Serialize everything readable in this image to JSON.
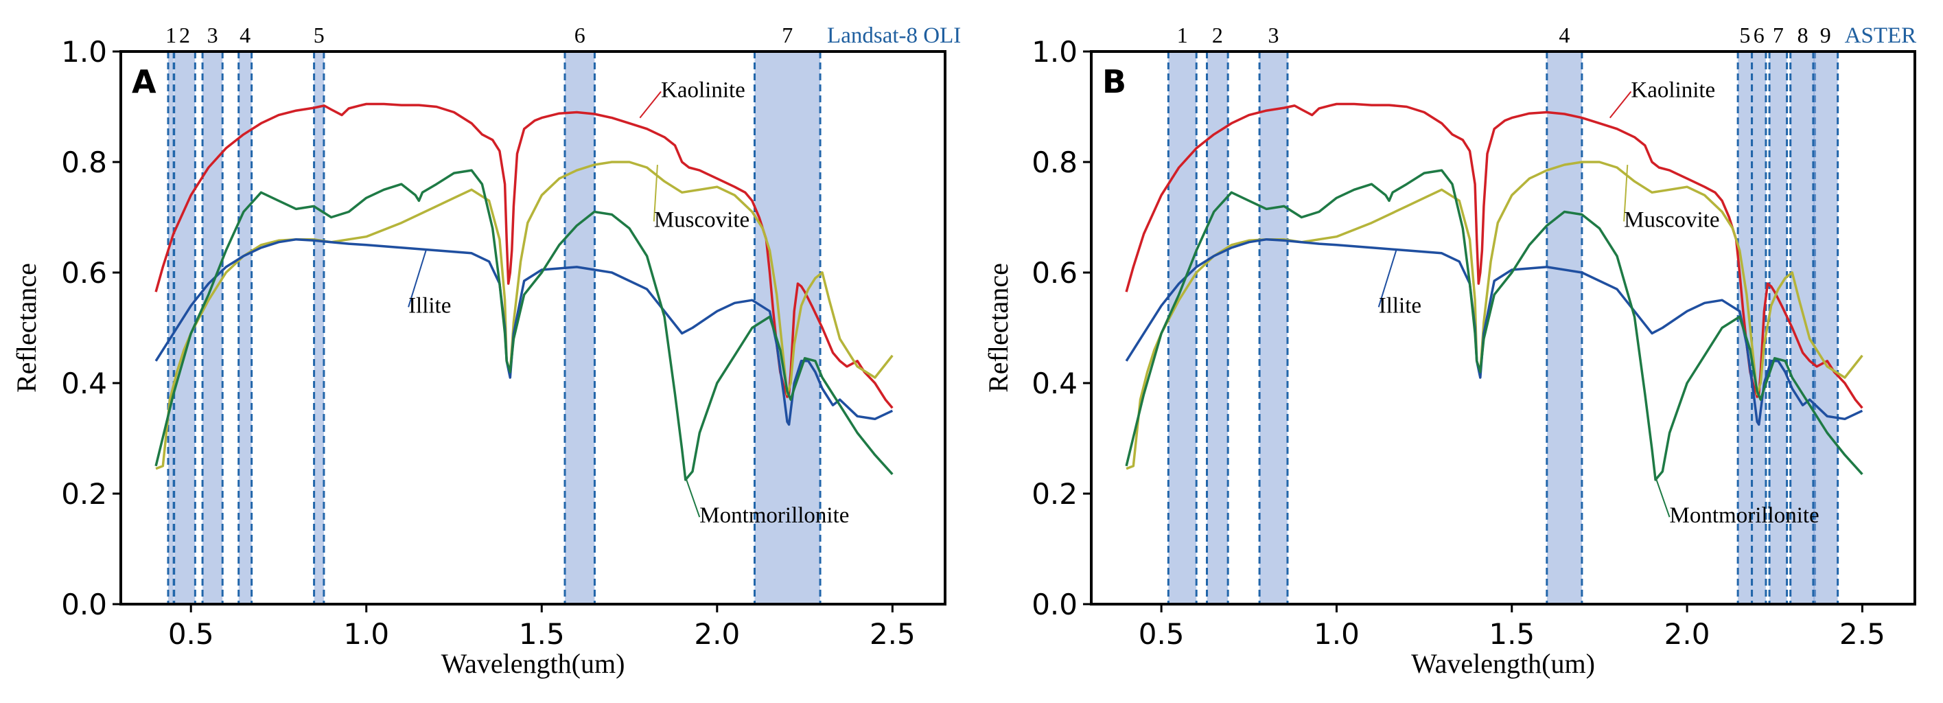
{
  "colors": {
    "kaolinite": "#d21f26",
    "muscovite": "#b5b43a",
    "illite": "#1f4fa0",
    "montmorillonite": "#1e7a45",
    "band_fill": "#8aa6d9",
    "band_edge": "#2266aa",
    "sensor_text": "#1f5f9f"
  },
  "chart_data": [
    {
      "type": "line",
      "panel_label": "A",
      "sensor": "Landsat-8 OLI",
      "xlabel": "Wavelength(um)",
      "ylabel": "Reflectance",
      "xlim": [
        0.3,
        2.65
      ],
      "ylim": [
        0.0,
        1.0
      ],
      "x_ticks": [
        {
          "value": 0.5,
          "label": "0.5"
        },
        {
          "value": 1.0,
          "label": "1.0"
        },
        {
          "value": 1.5,
          "label": "1.5"
        },
        {
          "value": 2.0,
          "label": "2.0"
        },
        {
          "value": 2.5,
          "label": "2.5"
        }
      ],
      "y_ticks": [
        {
          "value": 0.0,
          "label": "0.0"
        },
        {
          "value": 0.2,
          "label": "0.2"
        },
        {
          "value": 0.4,
          "label": "0.4"
        },
        {
          "value": 0.6,
          "label": "0.6"
        },
        {
          "value": 0.8,
          "label": "0.8"
        },
        {
          "value": 1.0,
          "label": "1.0"
        }
      ],
      "bands": [
        {
          "label": "1",
          "range": [
            0.435,
            0.451
          ]
        },
        {
          "label": "2",
          "range": [
            0.452,
            0.512
          ]
        },
        {
          "label": "3",
          "range": [
            0.533,
            0.59
          ]
        },
        {
          "label": "4",
          "range": [
            0.636,
            0.673
          ]
        },
        {
          "label": "5",
          "range": [
            0.851,
            0.879
          ]
        },
        {
          "label": "6",
          "range": [
            1.566,
            1.651
          ]
        },
        {
          "label": "7",
          "range": [
            2.107,
            2.294
          ]
        }
      ],
      "annotations": [
        {
          "series": "Kaolinite",
          "text": "Kaolinite",
          "point": [
            1.78,
            0.88
          ],
          "text_at": [
            1.84,
            0.935
          ]
        },
        {
          "series": "Muscovite",
          "text": "Muscovite",
          "point": [
            1.83,
            0.795
          ],
          "text_at": [
            1.82,
            0.7
          ]
        },
        {
          "series": "Illite",
          "text": "Illite",
          "point": [
            1.17,
            0.64
          ],
          "text_at": [
            1.12,
            0.545
          ]
        },
        {
          "series": "Montmorillonite",
          "text": "Montmorillonite",
          "point": [
            1.91,
            0.23
          ],
          "text_at": [
            1.95,
            0.165
          ]
        }
      ]
    },
    {
      "type": "line",
      "panel_label": "B",
      "sensor": "ASTER",
      "xlabel": "Wavelength(um)",
      "ylabel": "Reflectance",
      "xlim": [
        0.3,
        2.65
      ],
      "ylim": [
        0.0,
        1.0
      ],
      "x_ticks": [
        {
          "value": 0.5,
          "label": "0.5"
        },
        {
          "value": 1.0,
          "label": "1.0"
        },
        {
          "value": 1.5,
          "label": "1.5"
        },
        {
          "value": 2.0,
          "label": "2.0"
        },
        {
          "value": 2.5,
          "label": "2.5"
        }
      ],
      "y_ticks": [
        {
          "value": 0.0,
          "label": "0.0"
        },
        {
          "value": 0.2,
          "label": "0.2"
        },
        {
          "value": 0.4,
          "label": "0.4"
        },
        {
          "value": 0.6,
          "label": "0.6"
        },
        {
          "value": 0.8,
          "label": "0.8"
        },
        {
          "value": 1.0,
          "label": "1.0"
        }
      ],
      "bands": [
        {
          "label": "1",
          "range": [
            0.52,
            0.6
          ]
        },
        {
          "label": "2",
          "range": [
            0.63,
            0.69
          ]
        },
        {
          "label": "3",
          "range": [
            0.78,
            0.86
          ]
        },
        {
          "label": "4",
          "range": [
            1.6,
            1.7
          ]
        },
        {
          "label": "5",
          "range": [
            2.145,
            2.185
          ]
        },
        {
          "label": "6",
          "range": [
            2.185,
            2.225
          ]
        },
        {
          "label": "7",
          "range": [
            2.235,
            2.285
          ]
        },
        {
          "label": "8",
          "range": [
            2.295,
            2.365
          ]
        },
        {
          "label": "9",
          "range": [
            2.36,
            2.43
          ]
        }
      ],
      "annotations": [
        {
          "series": "Kaolinite",
          "text": "Kaolinite",
          "point": [
            1.78,
            0.88
          ],
          "text_at": [
            1.84,
            0.935
          ]
        },
        {
          "series": "Muscovite",
          "text": "Muscovite",
          "point": [
            1.83,
            0.795
          ],
          "text_at": [
            1.82,
            0.7
          ]
        },
        {
          "series": "Illite",
          "text": "Illite",
          "point": [
            1.17,
            0.64
          ],
          "text_at": [
            1.12,
            0.545
          ]
        },
        {
          "series": "Montmorillonite",
          "text": "Montmorillonite",
          "point": [
            1.91,
            0.23
          ],
          "text_at": [
            1.95,
            0.165
          ]
        }
      ]
    }
  ],
  "series": [
    {
      "name": "Kaolinite",
      "color_key": "kaolinite",
      "x": [
        0.4,
        0.42,
        0.45,
        0.5,
        0.55,
        0.6,
        0.65,
        0.7,
        0.75,
        0.8,
        0.85,
        0.88,
        0.9,
        0.93,
        0.95,
        0.98,
        1.0,
        1.05,
        1.1,
        1.15,
        1.2,
        1.25,
        1.3,
        1.33,
        1.36,
        1.38,
        1.395,
        1.4,
        1.405,
        1.41,
        1.415,
        1.42,
        1.43,
        1.45,
        1.48,
        1.5,
        1.55,
        1.6,
        1.65,
        1.7,
        1.75,
        1.8,
        1.85,
        1.88,
        1.9,
        1.92,
        1.95,
        2.0,
        2.05,
        2.08,
        2.1,
        2.12,
        2.14,
        2.15,
        2.16,
        2.17,
        2.18,
        2.19,
        2.2,
        2.205,
        2.21,
        2.22,
        2.23,
        2.24,
        2.25,
        2.27,
        2.3,
        2.33,
        2.35,
        2.37,
        2.4,
        2.42,
        2.45,
        2.48,
        2.5
      ],
      "y": [
        0.565,
        0.61,
        0.67,
        0.74,
        0.79,
        0.825,
        0.85,
        0.87,
        0.885,
        0.893,
        0.898,
        0.902,
        0.895,
        0.885,
        0.897,
        0.902,
        0.905,
        0.905,
        0.903,
        0.903,
        0.9,
        0.89,
        0.87,
        0.85,
        0.84,
        0.82,
        0.76,
        0.66,
        0.58,
        0.6,
        0.64,
        0.72,
        0.815,
        0.86,
        0.875,
        0.88,
        0.888,
        0.89,
        0.887,
        0.88,
        0.87,
        0.86,
        0.845,
        0.83,
        0.8,
        0.79,
        0.785,
        0.77,
        0.755,
        0.745,
        0.73,
        0.7,
        0.66,
        0.6,
        0.53,
        0.47,
        0.42,
        0.395,
        0.375,
        0.38,
        0.42,
        0.53,
        0.58,
        0.575,
        0.565,
        0.54,
        0.5,
        0.455,
        0.44,
        0.43,
        0.44,
        0.42,
        0.4,
        0.37,
        0.355
      ]
    },
    {
      "name": "Muscovite",
      "color_key": "muscovite",
      "x": [
        0.4,
        0.42,
        0.44,
        0.46,
        0.48,
        0.5,
        0.55,
        0.6,
        0.65,
        0.7,
        0.75,
        0.8,
        0.85,
        0.9,
        0.95,
        1.0,
        1.1,
        1.2,
        1.25,
        1.3,
        1.35,
        1.38,
        1.395,
        1.4,
        1.41,
        1.42,
        1.44,
        1.46,
        1.5,
        1.55,
        1.6,
        1.65,
        1.7,
        1.75,
        1.8,
        1.85,
        1.9,
        1.95,
        2.0,
        2.05,
        2.1,
        2.13,
        2.15,
        2.17,
        2.19,
        2.2,
        2.21,
        2.22,
        2.24,
        2.26,
        2.28,
        2.3,
        2.32,
        2.35,
        2.4,
        2.45,
        2.5
      ],
      "y": [
        0.245,
        0.25,
        0.37,
        0.42,
        0.46,
        0.49,
        0.55,
        0.6,
        0.63,
        0.65,
        0.658,
        0.66,
        0.66,
        0.655,
        0.66,
        0.665,
        0.69,
        0.72,
        0.735,
        0.75,
        0.73,
        0.66,
        0.55,
        0.44,
        0.42,
        0.51,
        0.62,
        0.69,
        0.74,
        0.77,
        0.785,
        0.795,
        0.8,
        0.8,
        0.79,
        0.765,
        0.745,
        0.75,
        0.755,
        0.74,
        0.71,
        0.68,
        0.64,
        0.56,
        0.44,
        0.38,
        0.4,
        0.47,
        0.54,
        0.57,
        0.59,
        0.6,
        0.55,
        0.48,
        0.43,
        0.41,
        0.45
      ]
    },
    {
      "name": "Illite",
      "color_key": "illite",
      "x": [
        0.4,
        0.45,
        0.5,
        0.55,
        0.6,
        0.65,
        0.7,
        0.75,
        0.8,
        0.85,
        0.9,
        0.95,
        1.0,
        1.1,
        1.2,
        1.3,
        1.35,
        1.38,
        1.395,
        1.4,
        1.41,
        1.42,
        1.45,
        1.5,
        1.6,
        1.7,
        1.8,
        1.9,
        1.93,
        2.0,
        2.05,
        2.1,
        2.15,
        2.17,
        2.19,
        2.2,
        2.205,
        2.21,
        2.22,
        2.24,
        2.26,
        2.28,
        2.3,
        2.33,
        2.35,
        2.4,
        2.45,
        2.5
      ],
      "y": [
        0.44,
        0.49,
        0.54,
        0.58,
        0.61,
        0.63,
        0.645,
        0.655,
        0.66,
        0.658,
        0.655,
        0.652,
        0.65,
        0.645,
        0.64,
        0.635,
        0.62,
        0.58,
        0.5,
        0.44,
        0.41,
        0.49,
        0.585,
        0.605,
        0.61,
        0.6,
        0.57,
        0.49,
        0.5,
        0.53,
        0.545,
        0.55,
        0.53,
        0.47,
        0.38,
        0.33,
        0.325,
        0.35,
        0.4,
        0.44,
        0.44,
        0.42,
        0.39,
        0.36,
        0.37,
        0.34,
        0.335,
        0.35
      ]
    },
    {
      "name": "Montmorillonite",
      "color_key": "montmorillonite",
      "x": [
        0.4,
        0.45,
        0.5,
        0.55,
        0.6,
        0.65,
        0.7,
        0.75,
        0.8,
        0.85,
        0.9,
        0.95,
        1.0,
        1.05,
        1.1,
        1.14,
        1.15,
        1.16,
        1.2,
        1.25,
        1.3,
        1.33,
        1.36,
        1.38,
        1.395,
        1.4,
        1.41,
        1.42,
        1.45,
        1.5,
        1.55,
        1.6,
        1.65,
        1.7,
        1.75,
        1.8,
        1.85,
        1.88,
        1.9,
        1.91,
        1.93,
        1.95,
        2.0,
        2.05,
        2.1,
        2.15,
        2.18,
        2.2,
        2.21,
        2.22,
        2.25,
        2.28,
        2.3,
        2.35,
        2.4,
        2.45,
        2.5
      ],
      "y": [
        0.25,
        0.38,
        0.49,
        0.56,
        0.64,
        0.71,
        0.745,
        0.73,
        0.715,
        0.72,
        0.7,
        0.71,
        0.735,
        0.75,
        0.76,
        0.74,
        0.73,
        0.745,
        0.76,
        0.78,
        0.785,
        0.76,
        0.68,
        0.58,
        0.49,
        0.44,
        0.42,
        0.48,
        0.56,
        0.6,
        0.65,
        0.685,
        0.71,
        0.705,
        0.68,
        0.63,
        0.52,
        0.38,
        0.28,
        0.225,
        0.24,
        0.31,
        0.4,
        0.45,
        0.5,
        0.52,
        0.46,
        0.385,
        0.37,
        0.39,
        0.445,
        0.44,
        0.41,
        0.36,
        0.31,
        0.27,
        0.235
      ]
    }
  ]
}
